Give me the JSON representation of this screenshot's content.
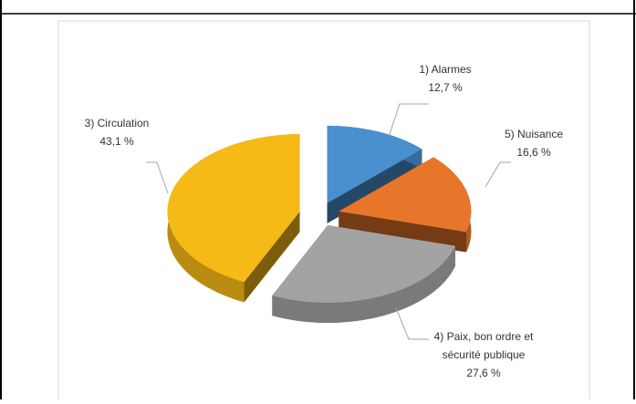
{
  "chart_data": {
    "type": "pie",
    "categories": [
      "1) Alarmes",
      "5) Nuisance",
      "4) Paix, bon ordre et sécurité publique",
      "3) Circulation"
    ],
    "values": [
      12.7,
      16.6,
      27.6,
      43.1
    ],
    "value_labels": [
      "12,7 %",
      "16,6 %",
      "27,6 %",
      "43,1 %"
    ],
    "colors": [
      "#4a8fce",
      "#e8762a",
      "#a3a3a3",
      "#f6ba17"
    ]
  }
}
